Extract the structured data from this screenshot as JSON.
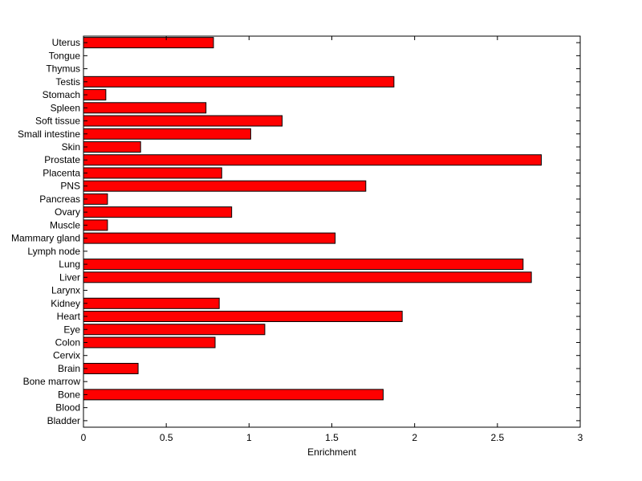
{
  "chart_data": {
    "type": "bar",
    "orientation": "horizontal",
    "title": "",
    "xlabel": "Enrichment",
    "ylabel": "",
    "xlim": [
      0,
      3
    ],
    "xticks": [
      "0",
      "0.5",
      "1",
      "1.5",
      "2",
      "2.5",
      "3"
    ],
    "grid": false,
    "bar_color": "#ff0000",
    "bar_edge_color": "#000000",
    "categories": [
      "Bladder",
      "Blood",
      "Bone",
      "Bone marrow",
      "Brain",
      "Cervix",
      "Colon",
      "Eye",
      "Heart",
      "Kidney",
      "Larynx",
      "Liver",
      "Lung",
      "Lymph node",
      "Mammary gland",
      "Muscle",
      "Ovary",
      "Pancreas",
      "PNS",
      "Placenta",
      "Prostate",
      "Skin",
      "Small intestine",
      "Soft tissue",
      "Spleen",
      "Stomach",
      "Testis",
      "Thymus",
      "Tongue",
      "Uterus"
    ],
    "values": [
      0,
      0,
      1.81,
      0,
      0.33,
      0,
      0.795,
      1.095,
      1.925,
      0.82,
      0,
      2.705,
      2.655,
      0,
      1.52,
      0.145,
      0.895,
      0.145,
      1.705,
      0.835,
      2.765,
      0.345,
      1.01,
      1.2,
      0.74,
      0.135,
      1.875,
      0,
      0,
      0.785
    ]
  }
}
